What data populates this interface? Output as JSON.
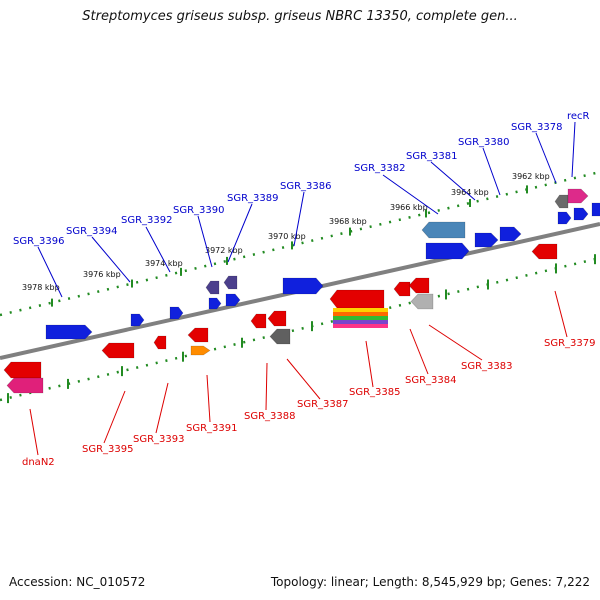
{
  "title": "Streptomyces griseus subsp. griseus NBRC 13350, complete gen...",
  "footer": {
    "accession": "Accession: NC_010572",
    "summary": "Topology: linear; Length: 8,545,929 bp; Genes: 7,222"
  },
  "colors": {
    "backbone": "#808080",
    "top_label": "#0000cc",
    "bottom_label": "#dd0000",
    "tick": "#228b22"
  },
  "scale_ticks": [
    "3978 kbp",
    "3976 kbp",
    "3974 kbp",
    "3972 kbp",
    "3970 kbp",
    "3968 kbp",
    "3966 kbp",
    "3964 kbp",
    "3962 kbp"
  ],
  "top_genes": [
    "SGR_3396",
    "SGR_3394",
    "SGR_3392",
    "SGR_3390",
    "SGR_3389",
    "SGR_3386",
    "SGR_3382",
    "SGR_3381",
    "SGR_3380",
    "SGR_3378",
    "recR"
  ],
  "bottom_genes": [
    "dnaN2",
    "SGR_3395",
    "SGR_3393",
    "SGR_3391",
    "SGR_3388",
    "SGR_3387",
    "SGR_3385",
    "SGR_3384",
    "SGR_3383",
    "SGR_3379"
  ]
}
